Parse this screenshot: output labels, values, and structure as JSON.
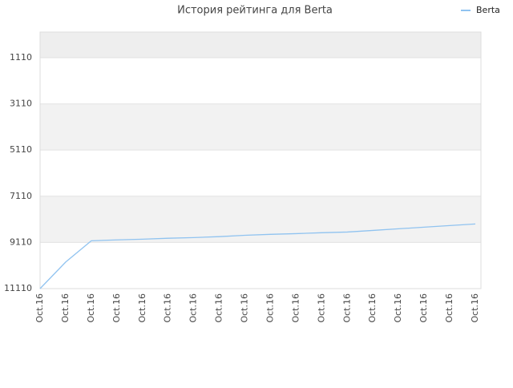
{
  "chart_data": {
    "type": "line",
    "title": "История рейтинга для Berta",
    "categories": [
      "Oct.16",
      "Oct.16",
      "Oct.16",
      "Oct.16",
      "Oct.16",
      "Oct.16",
      "Oct.16",
      "Oct.16",
      "Oct.16",
      "Oct.16",
      "Oct.16",
      "Oct.16",
      "Oct.16",
      "Oct.16",
      "Oct.16",
      "Oct.16",
      "Oct.16",
      "Oct.16"
    ],
    "series": [
      {
        "name": "Berta",
        "color": "#90c3f0",
        "values": [
          11110,
          9960,
          9040,
          9000,
          8970,
          8930,
          8900,
          8860,
          8800,
          8760,
          8730,
          8690,
          8660,
          8590,
          8520,
          8450,
          8380,
          8310
        ]
      }
    ],
    "ylim": [
      11110,
      0
    ],
    "yticks": [
      1110,
      3110,
      5110,
      7110,
      9110,
      11110
    ],
    "grid": true,
    "legend": "top-right"
  }
}
